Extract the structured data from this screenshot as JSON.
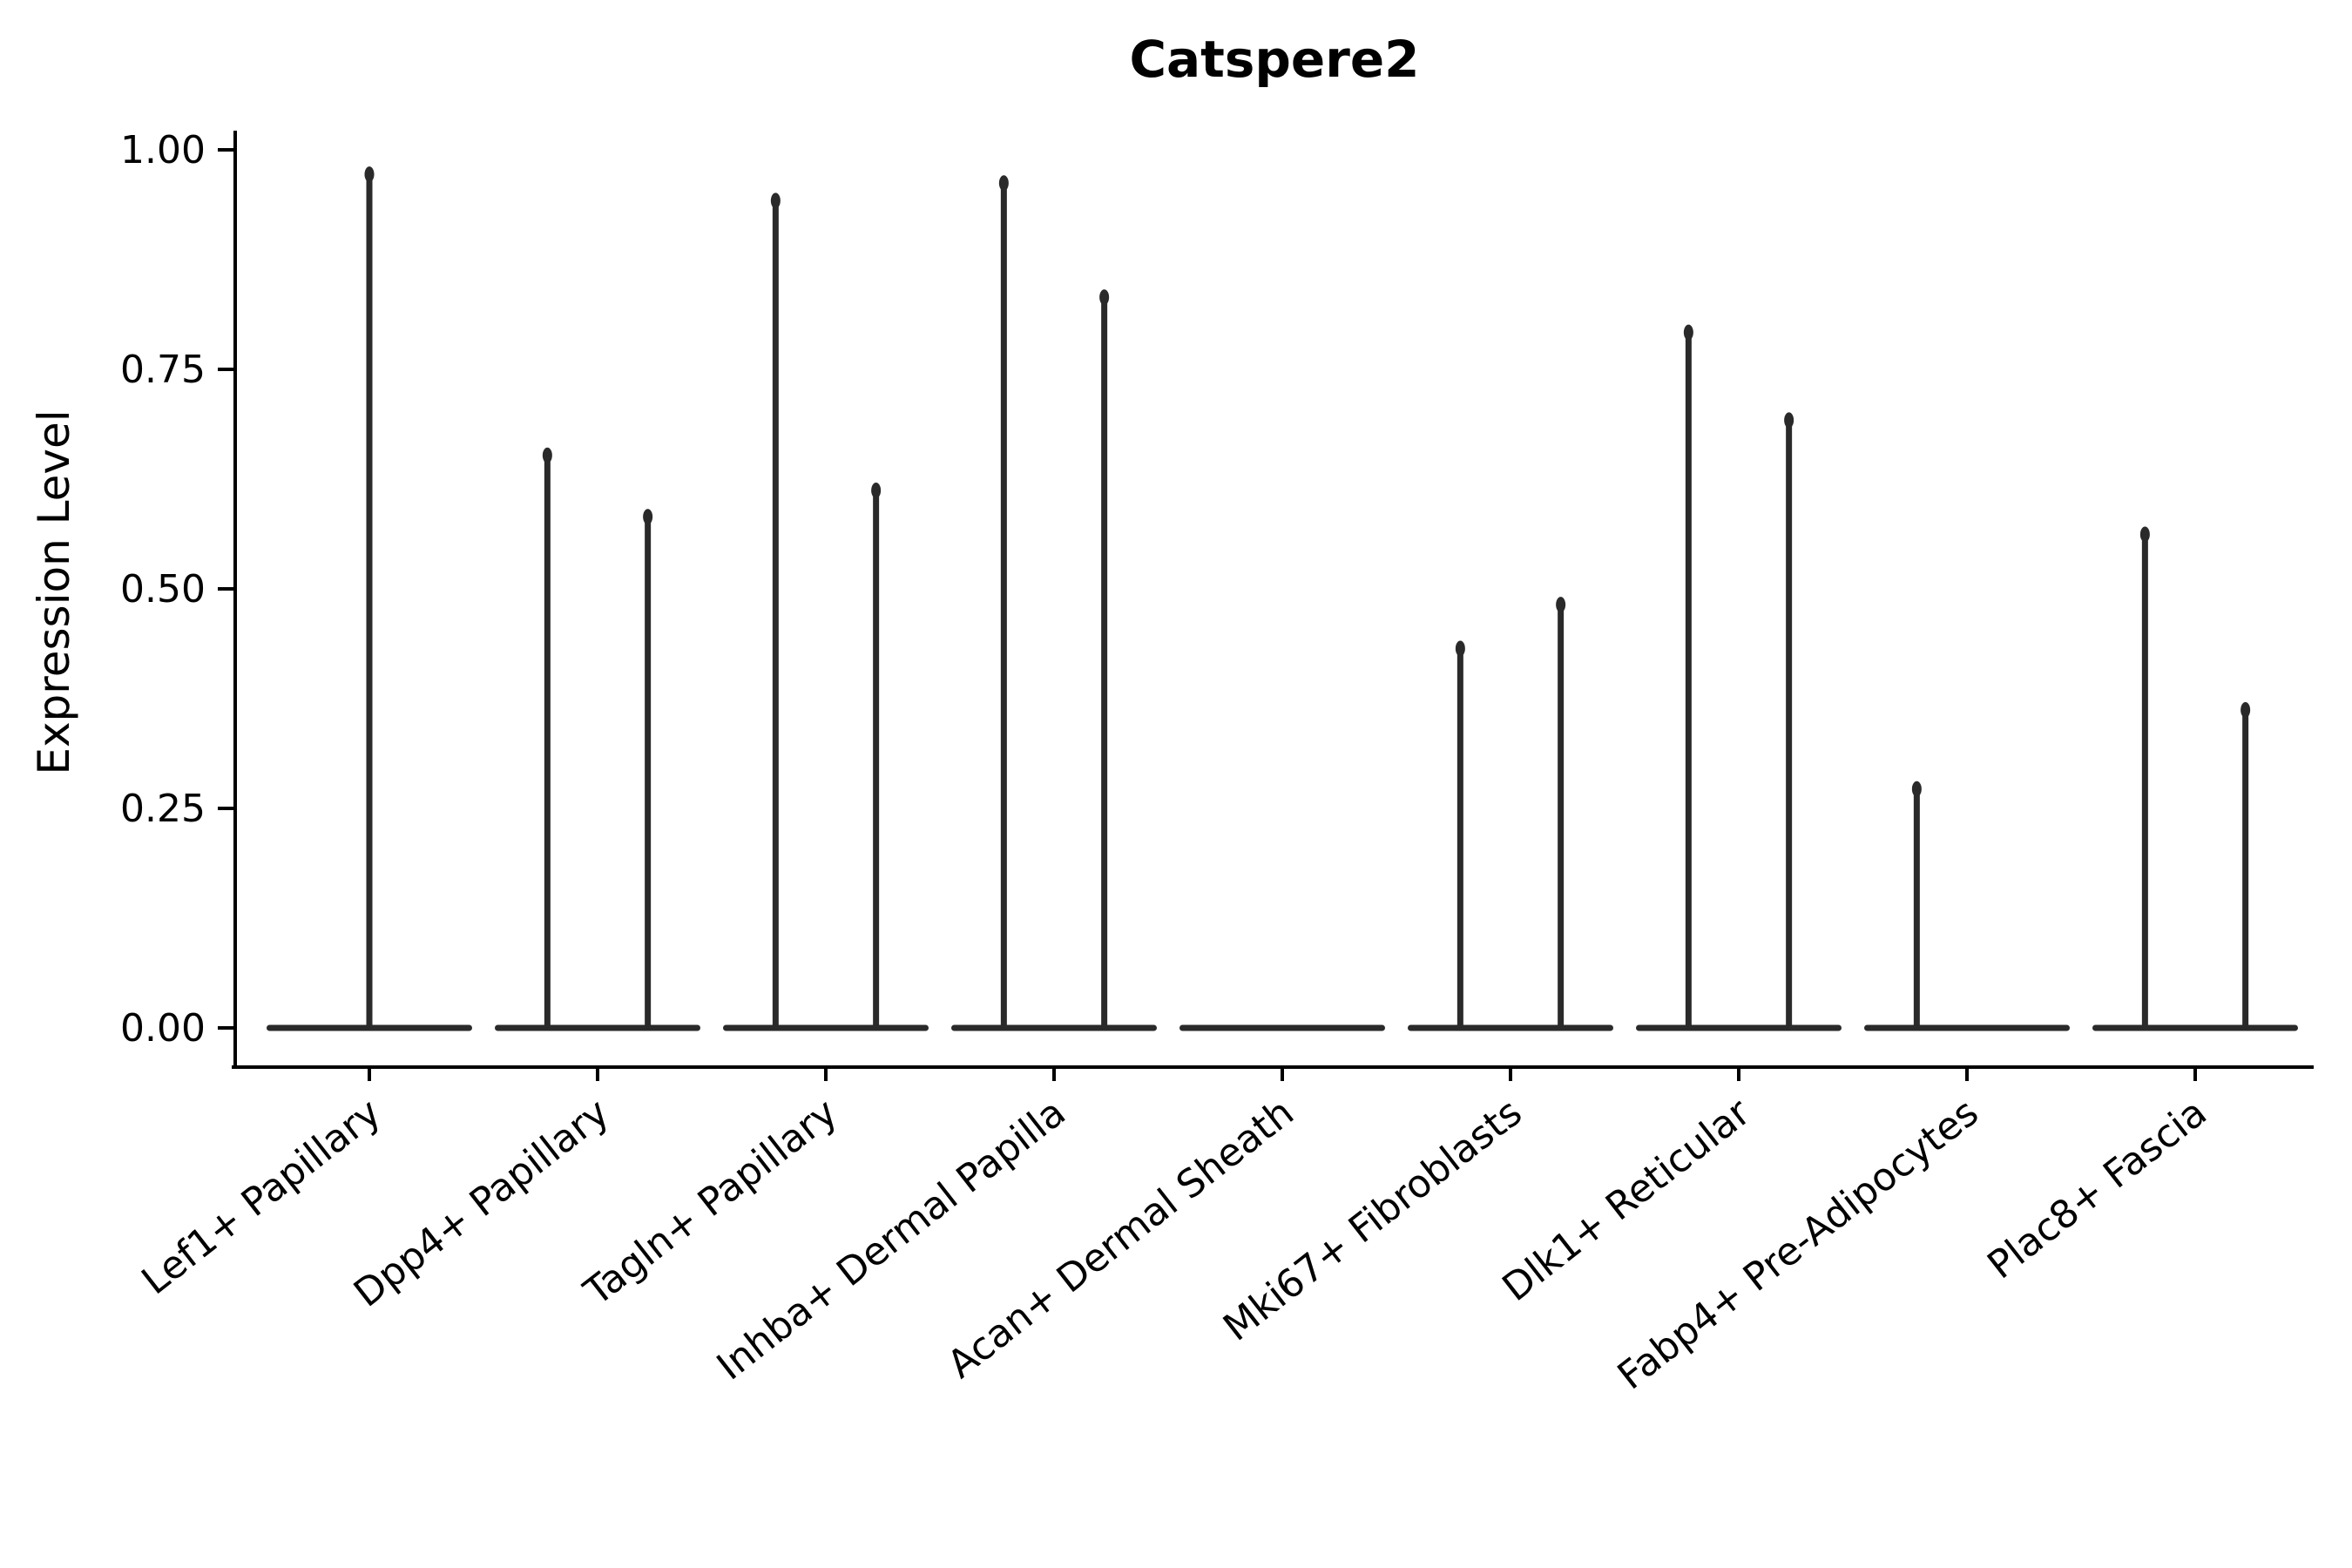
{
  "chart_data": {
    "type": "violin",
    "title": "Catspere2",
    "ylabel": "Expression Level",
    "xlabel": "",
    "ylim": [
      0.0,
      1.0
    ],
    "grid": false,
    "legend": "none",
    "yticks": [
      {
        "value": 1.0,
        "label": "1.00"
      },
      {
        "value": 0.75,
        "label": "0.75"
      },
      {
        "value": 0.5,
        "label": "0.50"
      },
      {
        "value": 0.25,
        "label": "0.25"
      },
      {
        "value": 0.0,
        "label": "0.00"
      }
    ],
    "categories": [
      "Lef1+ Papillary",
      "Dpp4+ Papillary",
      "Tagln+ Papillary",
      "Inhba+ Dermal Papilla",
      "Acan+ Dermal Sheath",
      "Mki67+ Fibroblasts",
      "Dlk1+ Reticular",
      "Fabp4+ Pre-Adipocytes",
      "Plac8+ Fascia"
    ],
    "series": [
      {
        "category": "Lef1+ Papillary",
        "baseline": 0.0,
        "spikes": [
          {
            "pos": 0.0,
            "max": 0.98
          }
        ]
      },
      {
        "category": "Dpp4+ Papillary",
        "baseline": 0.0,
        "spikes": [
          {
            "pos": -0.22,
            "max": 0.66
          },
          {
            "pos": 0.22,
            "max": 0.59
          }
        ]
      },
      {
        "category": "Tagln+ Papillary",
        "baseline": 0.0,
        "spikes": [
          {
            "pos": -0.22,
            "max": 0.95
          },
          {
            "pos": 0.22,
            "max": 0.62
          }
        ]
      },
      {
        "category": "Inhba+ Dermal Papilla",
        "baseline": 0.0,
        "spikes": [
          {
            "pos": -0.22,
            "max": 0.97
          },
          {
            "pos": 0.22,
            "max": 0.84
          }
        ]
      },
      {
        "category": "Acan+ Dermal Sheath",
        "baseline": 0.0,
        "spikes": []
      },
      {
        "category": "Mki67+ Fibroblasts",
        "baseline": 0.0,
        "spikes": [
          {
            "pos": -0.22,
            "max": 0.44
          },
          {
            "pos": 0.22,
            "max": 0.49
          }
        ]
      },
      {
        "category": "Dlk1+ Reticular",
        "baseline": 0.0,
        "spikes": [
          {
            "pos": -0.22,
            "max": 0.8
          },
          {
            "pos": 0.22,
            "max": 0.7
          }
        ]
      },
      {
        "category": "Fabp4+ Pre-Adipocytes",
        "baseline": 0.0,
        "spikes": [
          {
            "pos": -0.22,
            "max": 0.28
          }
        ]
      },
      {
        "category": "Plac8+ Fascia",
        "baseline": 0.0,
        "spikes": [
          {
            "pos": -0.22,
            "max": 0.57
          },
          {
            "pos": 0.22,
            "max": 0.37
          }
        ]
      }
    ],
    "colors": {
      "ink": "#000000",
      "violin": "#2a2a2a",
      "background": "#ffffff"
    }
  }
}
